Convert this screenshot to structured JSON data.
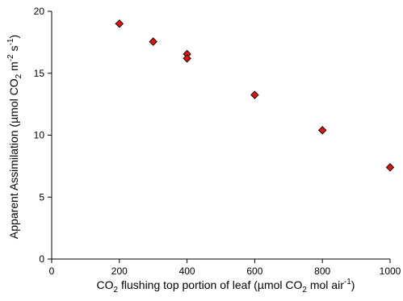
{
  "chart_data": {
    "type": "scatter",
    "xlabel": {
      "parts": [
        {
          "t": "CO"
        },
        {
          "t": "2",
          "sub": true
        },
        {
          "t": " flushing top portion of leaf (µmol CO"
        },
        {
          "t": "2",
          "sub": true
        },
        {
          "t": " mol air"
        },
        {
          "t": "-1",
          "sup": true
        },
        {
          "t": ")"
        }
      ]
    },
    "ylabel": {
      "parts": [
        {
          "t": "Apparent Assimilation (µmol CO"
        },
        {
          "t": "2",
          "sub": true
        },
        {
          "t": " m"
        },
        {
          "t": "-2",
          "sup": true
        },
        {
          "t": " s"
        },
        {
          "t": "-1",
          "sup": true
        },
        {
          "t": ")"
        }
      ]
    },
    "xlim": [
      0,
      1000
    ],
    "ylim": [
      0,
      20
    ],
    "x_ticks": [
      0,
      200,
      400,
      600,
      800,
      1000
    ],
    "y_ticks": [
      0,
      5,
      10,
      15,
      20
    ],
    "grid": false,
    "series": [
      {
        "marker": "diamond",
        "color": "#e0140f",
        "edge_color": "#000000",
        "points": [
          {
            "x": 200,
            "y": 19.0
          },
          {
            "x": 300,
            "y": 17.55
          },
          {
            "x": 400,
            "y": 16.55
          },
          {
            "x": 400,
            "y": 16.2
          },
          {
            "x": 600,
            "y": 13.25
          },
          {
            "x": 800,
            "y": 10.4
          },
          {
            "x": 1000,
            "y": 7.4
          }
        ]
      }
    ]
  }
}
